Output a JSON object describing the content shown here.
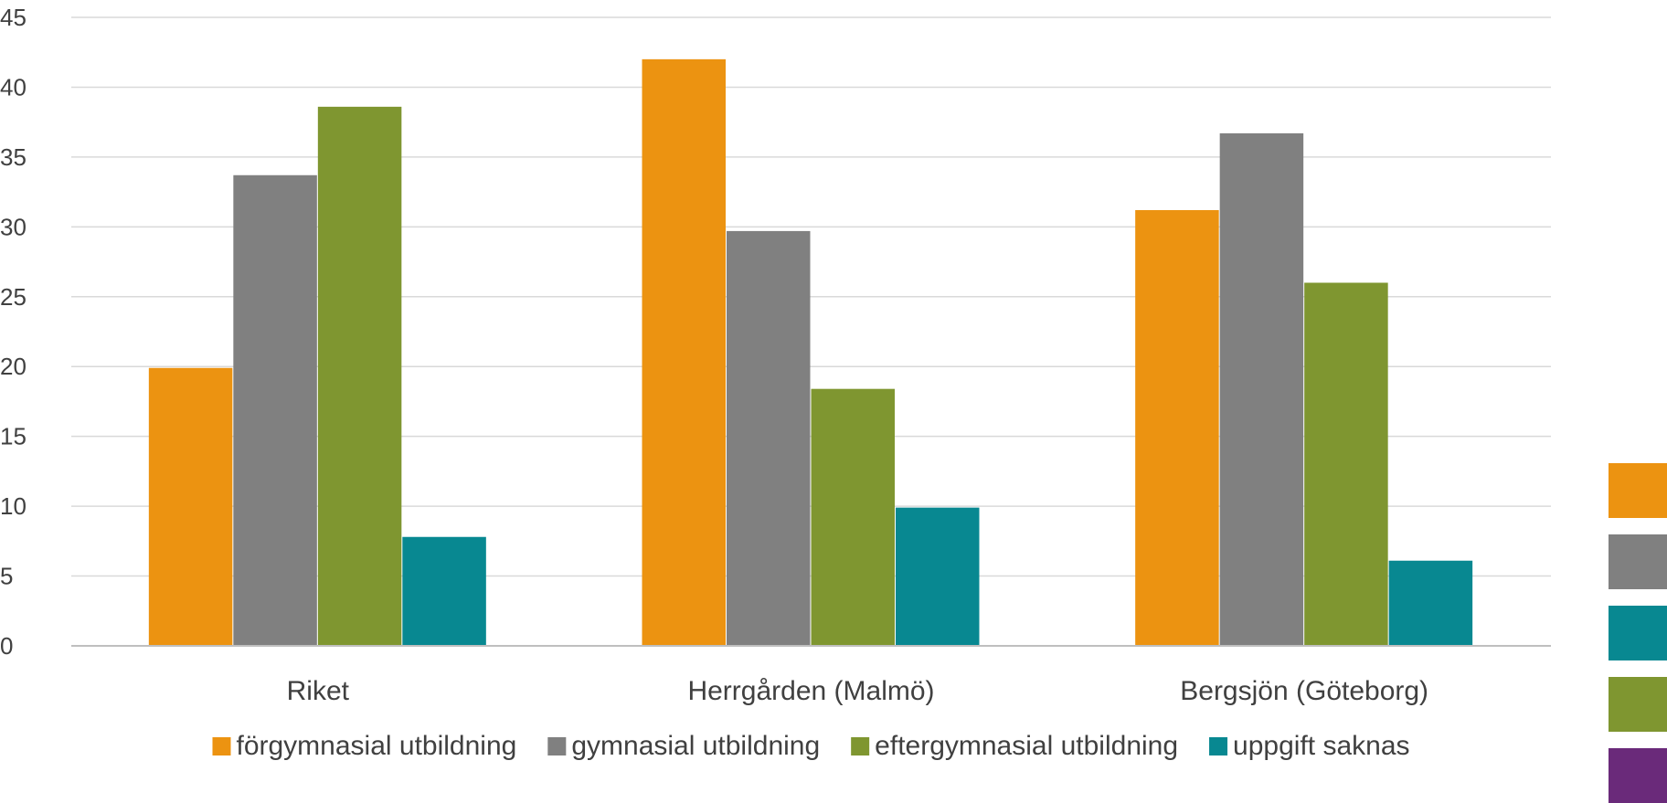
{
  "chart_data": {
    "type": "bar",
    "title": "",
    "xlabel": "",
    "ylabel": "",
    "categories": [
      "Riket",
      "Herrgården (Malmö)",
      "Bergsjön (Göteborg)"
    ],
    "series": [
      {
        "name": "förgymnasial utbildning",
        "color": "#ec9311",
        "values": [
          19.9,
          42.0,
          31.2
        ]
      },
      {
        "name": "gymnasial utbildning",
        "color": "#808080",
        "values": [
          33.7,
          29.7,
          36.7
        ]
      },
      {
        "name": "eftergymnasial utbildning",
        "color": "#7f9630",
        "values": [
          38.6,
          18.4,
          26.0
        ]
      },
      {
        "name": "uppgift saknas",
        "color": "#088891",
        "values": [
          7.8,
          9.9,
          6.1
        ]
      }
    ],
    "ylim": [
      0,
      45
    ],
    "yticks": [
      0,
      5,
      10,
      15,
      20,
      25,
      30,
      35,
      40,
      45
    ],
    "grid": true,
    "legend_position": "bottom"
  },
  "side_swatches": [
    {
      "color": "#ec9311"
    },
    {
      "color": "#808080"
    },
    {
      "color": "#088891"
    },
    {
      "color": "#7f9630"
    },
    {
      "color": "#6a2a7a"
    }
  ]
}
